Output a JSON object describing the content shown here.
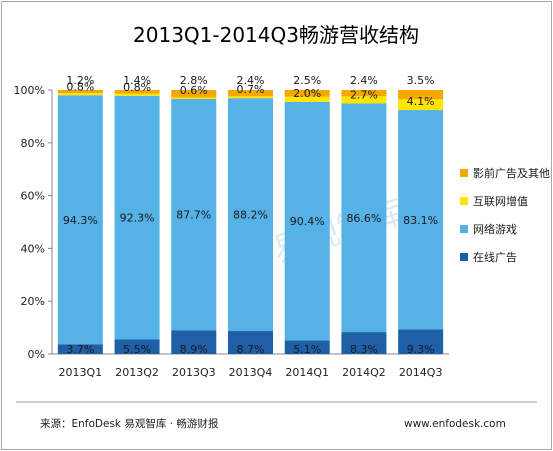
{
  "chart_data": {
    "type": "bar",
    "stacked": true,
    "title": "2013Q1-2014Q3畅游营收结构",
    "categories": [
      "2013Q1",
      "2013Q2",
      "2013Q3",
      "2013Q4",
      "2014Q1",
      "2014Q2",
      "2014Q3"
    ],
    "ylim": [
      0,
      100
    ],
    "yticks": [
      "0%",
      "20%",
      "40%",
      "60%",
      "80%",
      "100%"
    ],
    "legend_position": "right",
    "grid": false,
    "series": [
      {
        "name": "在线广告",
        "color": "#1f5fa8",
        "values": [
          3.7,
          5.5,
          8.9,
          8.7,
          5.1,
          8.3,
          9.3
        ],
        "labels": [
          "3.7%",
          "5.5%",
          "8.9%",
          "8.7%",
          "5.1%",
          "8.3%",
          "9.3%"
        ]
      },
      {
        "name": "网络游戏",
        "color": "#55b1e6",
        "values": [
          94.3,
          92.3,
          87.7,
          88.2,
          90.4,
          86.6,
          83.1
        ],
        "labels": [
          "94.3%",
          "92.3%",
          "87.7%",
          "88.2%",
          "90.4%",
          "86.6%",
          "83.1%"
        ]
      },
      {
        "name": "互联网增值",
        "color": "#ffe500",
        "values": [
          0.8,
          0.8,
          0.6,
          0.7,
          2.0,
          2.7,
          4.1
        ],
        "labels": [
          "0.8%",
          "0.8%",
          "0.6%",
          "0.7%",
          "2.0%",
          "2.7%",
          "4.1%"
        ]
      },
      {
        "name": "影前广告及其他",
        "color": "#f6a800",
        "values": [
          1.2,
          1.4,
          2.8,
          2.4,
          2.5,
          2.4,
          3.5
        ],
        "labels": [
          "1.2%",
          "1.4%",
          "2.8%",
          "2.4%",
          "2.5%",
          "2.4%",
          "3.5%"
        ]
      }
    ],
    "legend_order": [
      3,
      2,
      1,
      0
    ],
    "watermark": "易观智库"
  },
  "footer": {
    "source": "来源：EnfoDesk 易观智库 · 畅游财报",
    "website": "www.enfodesk.com"
  }
}
